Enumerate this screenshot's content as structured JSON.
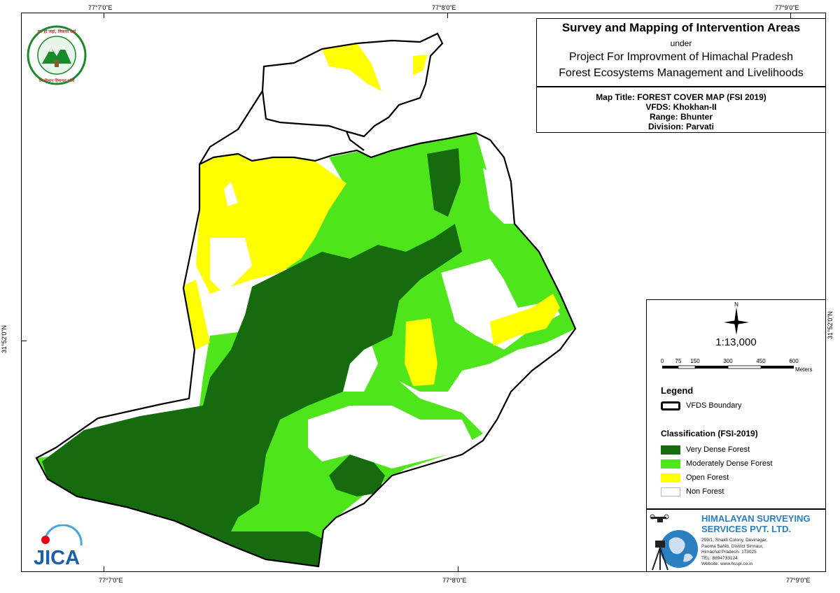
{
  "grid": {
    "top_labels": [
      "77°7'0\"E",
      "77°8'0\"E",
      "77°9'0\"E"
    ],
    "bottom_labels": [
      "77°7'0\"E",
      "77°8'0\"E",
      "77°9'0\"E"
    ],
    "left_label": "31°52'0\"N",
    "right_label": "31°52'0\"N"
  },
  "header": {
    "title": "Survey and Mapping of Intervention Areas",
    "under": "under",
    "project_line1": "Project For Improvment of Himachal Pradesh",
    "project_line2": "Forest Ecosystems Management and Livelihoods"
  },
  "map_info": {
    "map_title": "Map Title: FOREST COVER MAP (FSI 2019)",
    "vfds": "VFDS: Khokhan-II",
    "range": "Range: Bhunter",
    "division": "Division: Parvati"
  },
  "north_arrow": {
    "label": "N"
  },
  "scale": {
    "ratio": "1:13,000",
    "ticks": [
      "0",
      "75",
      "150",
      "300",
      "450",
      "600"
    ],
    "unit": "Meters"
  },
  "legend": {
    "title": "Legend",
    "boundary_label": "VFDS Boundary",
    "classification_title": "Classification (FSI-2019)",
    "classes": [
      {
        "label": "Very Dense Forest",
        "color": "#156b0d"
      },
      {
        "label": "Moderately Dense Forest",
        "color": "#4fe51c"
      },
      {
        "label": "Open Forest",
        "color": "#ffff00"
      },
      {
        "label": "Non Forest",
        "color": "#ffffff"
      }
    ]
  },
  "company": {
    "name_line1": "HIMALAYAN SURVEYING",
    "name_line2": "SERVICES PVT. LTD.",
    "address": [
      "259/1, Shakti Colony, Devinagar,",
      "Paonta Sahib, District Sirmaur,",
      "Himachal Pradesh- 173025",
      "TEL: 8894733124",
      "Website: www.hsspl.co.in"
    ]
  },
  "logos": {
    "jica": "JICA",
    "hp_forest_top": "वन हो जहां, विकास वहां",
    "hp_forest_bottom": "वन विभाग हिमाचल प्रदेश"
  },
  "colors": {
    "very_dense": "#156b0d",
    "moderately_dense": "#4fe51c",
    "open": "#ffff00",
    "non_forest": "#ffffff"
  }
}
